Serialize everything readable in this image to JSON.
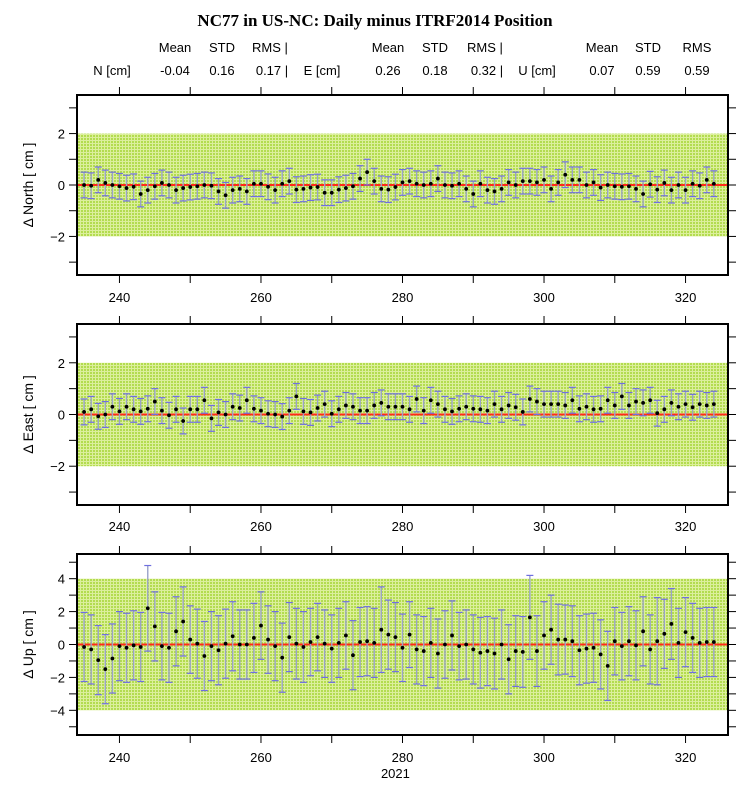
{
  "title": "NC77 in US-NC: Daily minus ITRF2014 Position",
  "stats": {
    "col_headers": [
      "Mean",
      "STD",
      "RMS |",
      "Mean",
      "STD",
      "RMS |",
      "Mean",
      "STD",
      "RMS"
    ],
    "north": {
      "label": "N [cm]",
      "mean": "-0.04",
      "std": "0.16",
      "rms": "0.17 |"
    },
    "east": {
      "label": "E [cm]",
      "mean": "0.26",
      "std": "0.18",
      "rms": "0.32 |"
    },
    "up": {
      "label": "U [cm]",
      "mean": "0.07",
      "std": "0.59",
      "rms": "0.59"
    }
  },
  "colors": {
    "band": "#b8e05a",
    "zero_line": "#ff2a1a",
    "error_bar": "#9aa3c8",
    "error_cap": "#6f6fe0",
    "point": "#000000"
  },
  "chart_data": [
    {
      "type": "scatter",
      "ylabel": "Δ North  [ cm ]",
      "xlim": [
        234,
        326
      ],
      "ylim": [
        -3.5,
        3.5
      ],
      "xticks": [
        240,
        260,
        280,
        300,
        320
      ],
      "xtick_labels": [
        "240",
        "260",
        "280",
        "300",
        "320"
      ],
      "yticks": [
        -2,
        0,
        2
      ],
      "ytick_labels": [
        "−2",
        "0",
        "2"
      ],
      "band": [
        -2,
        2
      ],
      "reference_line": 0,
      "grid": false,
      "x": [
        235,
        236,
        237,
        238,
        239,
        240,
        241,
        242,
        243,
        244,
        245,
        246,
        247,
        248,
        249,
        250,
        251,
        252,
        253,
        254,
        255,
        256,
        257,
        258,
        259,
        260,
        261,
        262,
        263,
        264,
        265,
        266,
        267,
        268,
        269,
        270,
        271,
        272,
        273,
        274,
        275,
        276,
        277,
        278,
        279,
        280,
        281,
        282,
        283,
        284,
        285,
        286,
        287,
        288,
        289,
        290,
        291,
        292,
        293,
        294,
        295,
        296,
        297,
        298,
        299,
        300,
        301,
        302,
        303,
        304,
        305,
        306,
        307,
        308,
        309,
        310,
        311,
        312,
        313,
        314,
        315,
        316,
        317,
        318,
        319,
        320,
        321,
        322,
        323,
        324
      ],
      "y": [
        0,
        -0.03,
        0.2,
        0.08,
        0,
        -0.05,
        -0.12,
        -0.07,
        -0.35,
        -0.2,
        -0.05,
        0.08,
        0,
        -0.2,
        -0.12,
        -0.08,
        -0.05,
        0,
        -0.03,
        -0.25,
        -0.4,
        -0.2,
        -0.15,
        -0.25,
        0.05,
        0.05,
        -0.07,
        -0.2,
        0.05,
        0.15,
        -0.18,
        -0.15,
        -0.1,
        -0.08,
        -0.3,
        -0.3,
        -0.18,
        -0.12,
        -0.05,
        0.25,
        0.5,
        0.15,
        -0.15,
        -0.18,
        -0.08,
        0.1,
        0.15,
        0.05,
        0,
        0.05,
        0.25,
        0,
        -0.03,
        0.05,
        -0.15,
        -0.35,
        0.05,
        -0.2,
        -0.25,
        -0.15,
        0.1,
        0,
        0.15,
        0.15,
        0.1,
        0.2,
        -0.15,
        0.1,
        0.4,
        0.2,
        0.2,
        0,
        0.1,
        -0.1,
        0,
        -0.05,
        -0.07,
        -0.05,
        -0.15,
        -0.35,
        0.03,
        -0.18,
        0.08,
        -0.2,
        0,
        -0.2,
        0.05,
        -0.03,
        0.2,
        0.05
      ],
      "sigma": 0.5
    },
    {
      "type": "scatter",
      "ylabel": "Δ East  [ cm ]",
      "xlim": [
        234,
        326
      ],
      "ylim": [
        -3.5,
        3.5
      ],
      "xticks": [
        240,
        260,
        280,
        300,
        320
      ],
      "xtick_labels": [
        "240",
        "260",
        "280",
        "300",
        "320"
      ],
      "yticks": [
        -2,
        0,
        2
      ],
      "ytick_labels": [
        "−2",
        "0",
        "2"
      ],
      "band": [
        -2,
        2
      ],
      "reference_line": 0,
      "grid": false,
      "x": [
        235,
        236,
        237,
        238,
        239,
        240,
        241,
        242,
        243,
        244,
        245,
        246,
        247,
        248,
        249,
        250,
        251,
        252,
        253,
        254,
        255,
        256,
        257,
        258,
        259,
        260,
        261,
        262,
        263,
        264,
        265,
        266,
        267,
        268,
        269,
        270,
        271,
        272,
        273,
        274,
        275,
        276,
        277,
        278,
        279,
        280,
        281,
        282,
        283,
        284,
        285,
        286,
        287,
        288,
        289,
        290,
        291,
        292,
        293,
        294,
        295,
        296,
        297,
        298,
        299,
        300,
        301,
        302,
        303,
        304,
        305,
        306,
        307,
        308,
        309,
        310,
        311,
        312,
        313,
        314,
        315,
        316,
        317,
        318,
        319,
        320,
        321,
        322,
        323,
        324
      ],
      "y": [
        0.1,
        0.2,
        -0.07,
        0,
        0.3,
        0.12,
        0.3,
        0.2,
        0.12,
        0.22,
        0.5,
        0.15,
        -0.03,
        0.2,
        -0.25,
        0.2,
        0.2,
        0.55,
        -0.15,
        0.08,
        0,
        0.3,
        0.25,
        0.55,
        0.22,
        0.15,
        0.03,
        0,
        -0.08,
        0.15,
        0.7,
        0.12,
        0.08,
        0.25,
        0.4,
        0.03,
        0.2,
        0.35,
        0.3,
        0.15,
        0.15,
        0.35,
        0.45,
        0.3,
        0.3,
        0.3,
        0.2,
        0.6,
        0.15,
        0.55,
        0.4,
        0.2,
        0.12,
        0.22,
        0.3,
        0.22,
        0.2,
        0.15,
        0.4,
        0.2,
        0.35,
        0.28,
        0.1,
        0.6,
        0.5,
        0.4,
        0.4,
        0.4,
        0.35,
        0.55,
        0.22,
        0.3,
        0.2,
        0.22,
        0.55,
        0.35,
        0.7,
        0.35,
        0.5,
        0.45,
        0.55,
        0.05,
        0.2,
        0.45,
        0.3,
        0.4,
        0.28,
        0.4,
        0.35,
        0.4
      ],
      "sigma": 0.5
    },
    {
      "type": "scatter",
      "ylabel": "Δ Up  [ cm ]",
      "xlabel": "2021",
      "xlim": [
        234,
        326
      ],
      "ylim": [
        -5.5,
        5.5
      ],
      "xticks": [
        240,
        260,
        280,
        300,
        320
      ],
      "xtick_labels": [
        "240",
        "260",
        "280",
        "300",
        "320"
      ],
      "yticks": [
        -4,
        -2,
        0,
        2,
        4
      ],
      "ytick_labels": [
        "−4",
        "−2",
        "0",
        "2",
        "4"
      ],
      "band": [
        -4,
        4
      ],
      "reference_line": 0,
      "grid": false,
      "x": [
        235,
        236,
        237,
        238,
        239,
        240,
        241,
        242,
        243,
        244,
        245,
        246,
        247,
        248,
        249,
        250,
        251,
        252,
        253,
        254,
        255,
        256,
        257,
        258,
        259,
        260,
        261,
        262,
        263,
        264,
        265,
        266,
        267,
        268,
        269,
        270,
        271,
        272,
        273,
        274,
        275,
        276,
        277,
        278,
        279,
        280,
        281,
        282,
        283,
        284,
        285,
        286,
        287,
        288,
        289,
        290,
        291,
        292,
        293,
        294,
        295,
        296,
        297,
        298,
        299,
        300,
        301,
        302,
        303,
        304,
        305,
        306,
        307,
        308,
        309,
        310,
        311,
        312,
        313,
        314,
        315,
        316,
        317,
        318,
        319,
        320,
        321,
        322,
        323,
        324
      ],
      "y": [
        -0.15,
        -0.3,
        -0.95,
        -1.5,
        -0.85,
        -0.1,
        -0.2,
        -0.05,
        -0.15,
        2.2,
        1.1,
        -0.1,
        -0.2,
        0.8,
        1.4,
        0.3,
        0.05,
        -0.7,
        -0.1,
        -0.35,
        0.05,
        0.5,
        0,
        0,
        0.4,
        1.15,
        0.3,
        -0.1,
        -0.8,
        0.45,
        0.05,
        -0.15,
        0.15,
        0.45,
        0.05,
        -0.25,
        0.1,
        0.55,
        -0.65,
        0.15,
        0.2,
        0.1,
        0.9,
        0.6,
        0.45,
        -0.2,
        0.6,
        -0.3,
        -0.4,
        0.1,
        -0.55,
        0,
        0.55,
        -0.1,
        0,
        -0.3,
        -0.5,
        -0.4,
        -0.55,
        0,
        -0.9,
        -0.4,
        -0.45,
        1.65,
        -0.4,
        0.55,
        0.9,
        0.3,
        0.3,
        0.2,
        -0.35,
        -0.25,
        -0.2,
        -0.6,
        -1.3,
        0.2,
        -0.1,
        0.2,
        -0.05,
        0.8,
        -0.3,
        0.2,
        0.65,
        1.25,
        0.1,
        0.75,
        0.4,
        0.1,
        0.15,
        0.15
      ],
      "sigma": [
        2.1,
        2.1,
        2.1,
        2.1,
        2.1,
        2.1,
        2.1,
        2.1,
        2.1,
        2.6,
        2.1,
        2.05,
        2.1,
        2.1,
        2.1,
        2.05,
        2.1,
        2.1,
        2.1,
        2.1,
        2.1,
        2.1,
        2.1,
        2.1,
        2.1,
        2.05,
        2.05,
        2.1,
        2.1,
        2.1,
        2.15,
        2.15,
        2.05,
        2.05,
        2.05,
        2.05,
        2.1,
        2.05,
        2.1,
        2.1,
        2.1,
        2.1,
        2.6,
        2.1,
        2.1,
        2.05,
        2.0,
        2.1,
        2.1,
        2.1,
        2.1,
        2.05,
        2.1,
        2.05,
        2.1,
        2.1,
        2.15,
        2.1,
        2.15,
        2.1,
        2.1,
        2.15,
        2.15,
        2.55,
        2.15,
        2.05,
        2.1,
        2.15,
        2.1,
        2.15,
        2.1,
        2.1,
        2.1,
        2.1,
        2.1,
        2.05,
        2.05,
        2.1,
        2.1,
        2.1,
        2.1,
        2.65,
        2.1,
        2.15,
        2.1,
        2.1,
        2.1,
        2.1,
        2.1,
        2.1
      ]
    }
  ]
}
